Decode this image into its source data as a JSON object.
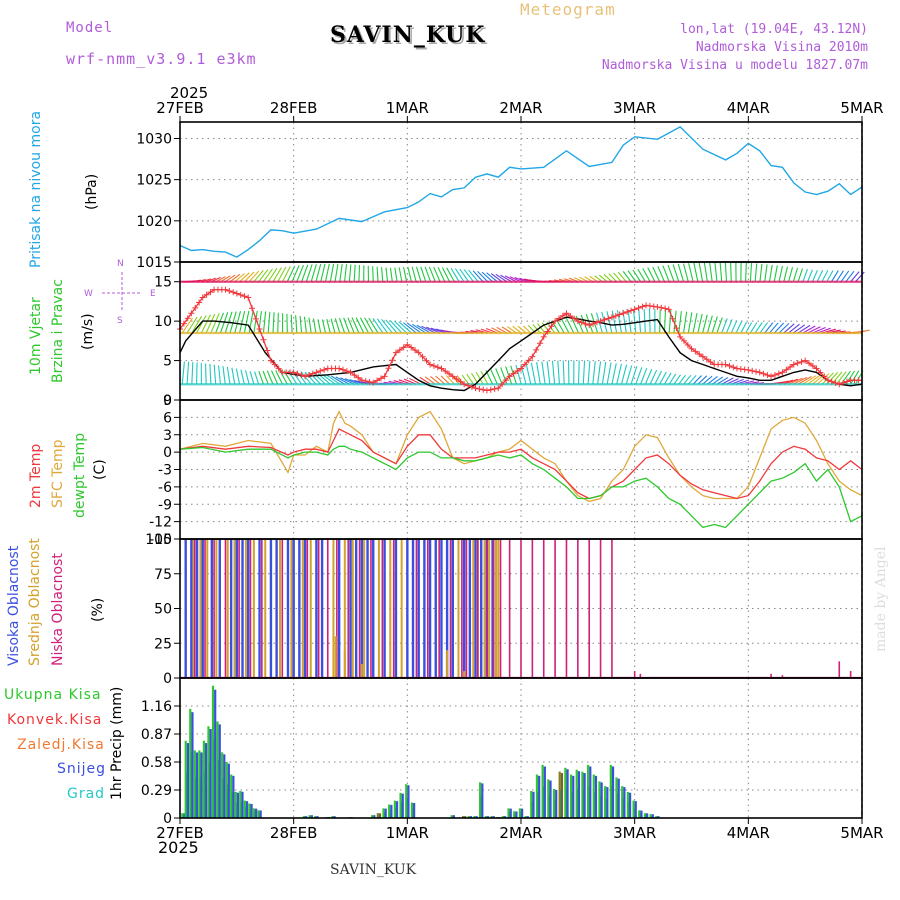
{
  "header": {
    "model_label": "Model",
    "model_name": "wrf-nmm_v3.9.1 e3km",
    "station": "SAVIN_KUK",
    "meteogram": "Meteogram",
    "lonlat": "lon,lat (19.04E, 43.12N)",
    "altitude": "Nadmorska Visina 2010m",
    "altitude_model": "Nadmorska Visina u modelu 1827.07m",
    "year_top": "2025",
    "year_bottom": "2025",
    "footer_station": "SAVIN_KUK",
    "credit": "made by Angel"
  },
  "colors": {
    "pressure": "#21a6e6",
    "wind_speed": "#000000",
    "wind_gust": "#f0383c",
    "temp_2m": "#f0383c",
    "temp_sfc": "#e0a83a",
    "dewpt": "#2ec82e",
    "cloud_high": "#3a4fe0",
    "cloud_mid": "#d2a22a",
    "cloud_low": "#d0207a",
    "precip_total": "#2ec82e",
    "precip_conv": "#f0383c",
    "precip_frozen": "#f07a30",
    "precip_snow": "#3a4fe0",
    "precip_graupel": "#23c8c8"
  },
  "chart_data": [
    {
      "type": "line",
      "name": "pressure",
      "ylabel_1": "Pritisak na nivou mora",
      "ylabel_2": "(hPa)",
      "x_tick_labels": [
        "27FEB",
        "28FEB",
        "1MAR",
        "2MAR",
        "3MAR",
        "4MAR",
        "5MAR"
      ],
      "ylim": [
        1015,
        1032
      ],
      "y_ticks": [
        1015,
        1020,
        1025,
        1030
      ],
      "x_days": [
        0,
        0.1,
        0.2,
        0.3,
        0.4,
        0.5,
        0.6,
        0.7,
        0.8,
        0.9,
        1.0,
        1.2,
        1.4,
        1.6,
        1.8,
        2.0,
        2.1,
        2.2,
        2.3,
        2.4,
        2.5,
        2.6,
        2.7,
        2.8,
        2.9,
        3.0,
        3.2,
        3.4,
        3.6,
        3.8,
        3.9,
        4.0,
        4.2,
        4.4,
        4.6,
        4.8,
        4.9,
        5.0,
        5.1,
        5.2,
        5.3,
        5.4,
        5.5,
        5.6,
        5.7,
        5.8,
        5.9,
        6.0
      ],
      "values": [
        1017,
        1016.4,
        1016.5,
        1016.3,
        1016.2,
        1015.6,
        1016.5,
        1017.6,
        1018.9,
        1018.8,
        1018.5,
        1019,
        1020.3,
        1019.9,
        1021.1,
        1021.6,
        1022.3,
        1023.3,
        1022.9,
        1023.8,
        1024,
        1025.3,
        1025.7,
        1025.3,
        1026.5,
        1026.3,
        1026.5,
        1028.5,
        1026.6,
        1027.1,
        1029.2,
        1030.2,
        1029.9,
        1031.4,
        1028.7,
        1027.4,
        1028.2,
        1029.4,
        1028.5,
        1026.7,
        1026.5,
        1024.6,
        1023.5,
        1023.2,
        1023.6,
        1024.5,
        1023.2,
        1024.1
      ]
    },
    {
      "type": "line",
      "name": "wind",
      "ylabel_1": "10m Vjetar",
      "ylabel_2": "Brzina i Pravac",
      "ylabel_3": "(m/s)",
      "compass": [
        "N",
        "E",
        "S",
        "W"
      ],
      "ylim": [
        0,
        17.5
      ],
      "y_ticks": [
        0,
        5,
        10,
        15
      ],
      "barb_rows_ms": [
        15,
        8.5,
        2
      ],
      "series": [
        {
          "name": "speed",
          "x_days": [
            0,
            0.05,
            0.2,
            0.3,
            0.45,
            0.6,
            0.75,
            0.9,
            1.1,
            1.3,
            1.5,
            1.7,
            1.9,
            2.0,
            2.1,
            2.2,
            2.3,
            2.4,
            2.5,
            2.6,
            2.7,
            2.8,
            2.9,
            3.0,
            3.1,
            3.2,
            3.3,
            3.4,
            3.5,
            3.6,
            3.7,
            3.8,
            3.9,
            4.0,
            4.1,
            4.2,
            4.3,
            4.4,
            4.5,
            4.6,
            4.7,
            4.8,
            4.9,
            5.0,
            5.1,
            5.2,
            5.3,
            5.4,
            5.5,
            5.6,
            5.7,
            5.8,
            5.9,
            6.0
          ],
          "values": [
            6,
            7.5,
            10,
            10,
            9.8,
            9.5,
            6,
            3.5,
            3,
            3.2,
            3.5,
            4.2,
            4.5,
            3.5,
            2.5,
            1.8,
            1.5,
            1.3,
            1.2,
            2,
            3.5,
            5,
            6.5,
            7.5,
            8.5,
            9.5,
            10,
            10.5,
            10.3,
            10,
            9.8,
            9.5,
            9.6,
            9.8,
            10,
            10.2,
            8,
            6,
            5,
            4.5,
            4,
            3.5,
            3,
            2.8,
            2.5,
            2.5,
            3,
            3.5,
            3.8,
            3.5,
            2.5,
            2,
            1.8,
            2
          ]
        },
        {
          "name": "gust",
          "x_days": [
            0,
            0.1,
            0.2,
            0.3,
            0.4,
            0.5,
            0.6,
            0.7,
            0.8,
            0.9,
            1.0,
            1.1,
            1.2,
            1.3,
            1.4,
            1.5,
            1.6,
            1.7,
            1.8,
            1.9,
            2.0,
            2.1,
            2.2,
            2.3,
            2.4,
            2.5,
            2.6,
            2.7,
            2.8,
            2.9,
            3.0,
            3.1,
            3.2,
            3.3,
            3.4,
            3.5,
            3.6,
            3.7,
            3.8,
            3.9,
            4.0,
            4.1,
            4.2,
            4.3,
            4.4,
            4.5,
            4.6,
            4.7,
            4.8,
            4.9,
            5.0,
            5.1,
            5.2,
            5.3,
            5.4,
            5.5,
            5.6,
            5.7,
            5.8,
            5.9,
            6.0
          ],
          "values": [
            9,
            11,
            13,
            14,
            14,
            13.5,
            13,
            9,
            5,
            3.5,
            3.5,
            3,
            3.5,
            4,
            4,
            3.5,
            2.5,
            2.2,
            3,
            6,
            7,
            6,
            4.5,
            4,
            3,
            2,
            1.5,
            1.2,
            1.5,
            3,
            4,
            5.5,
            8,
            10,
            11,
            10,
            9.5,
            10,
            10.5,
            11,
            11.5,
            12,
            11.8,
            11.5,
            8,
            6.5,
            5.5,
            4.5,
            4.5,
            4,
            3.8,
            3.5,
            3,
            3.5,
            4.5,
            5,
            4,
            2.5,
            2,
            2.5,
            2.5
          ]
        }
      ]
    },
    {
      "type": "line",
      "name": "temperature",
      "ylabel_1": "2m Temp",
      "ylabel_2": "SFC Temp",
      "ylabel_3": "dewpt Temp",
      "ylabel_4": "(C)",
      "ylim": [
        -15,
        9
      ],
      "y_ticks": [
        9,
        6,
        3,
        0,
        -3,
        -6,
        -9,
        -12,
        -15
      ],
      "x_days": [
        0,
        0.2,
        0.4,
        0.6,
        0.8,
        0.95,
        1.0,
        1.1,
        1.2,
        1.3,
        1.35,
        1.4,
        1.45,
        1.5,
        1.6,
        1.7,
        1.8,
        1.9,
        2.0,
        2.1,
        2.2,
        2.3,
        2.4,
        2.5,
        2.6,
        2.7,
        2.8,
        2.9,
        3.0,
        3.1,
        3.2,
        3.3,
        3.4,
        3.5,
        3.6,
        3.7,
        3.8,
        3.9,
        4.0,
        4.1,
        4.2,
        4.3,
        4.4,
        4.5,
        4.6,
        4.7,
        4.8,
        4.9,
        5.0,
        5.1,
        5.2,
        5.3,
        5.4,
        5.5,
        5.6,
        5.7,
        5.8,
        5.9,
        6.0
      ],
      "series": [
        {
          "name": "2m Temp",
          "values": [
            0.5,
            1,
            0.5,
            1,
            0.8,
            -0.5,
            0,
            0.5,
            0.5,
            0,
            2,
            4,
            3.5,
            3,
            2,
            0,
            -1,
            -2,
            1,
            3,
            3,
            0.5,
            -1,
            -1,
            -1,
            -0.5,
            0,
            0,
            0.5,
            -1,
            -2,
            -3,
            -5,
            -7,
            -8,
            -7.5,
            -6,
            -5,
            -3,
            -1,
            -0.5,
            -2,
            -4,
            -5.5,
            -6.5,
            -7,
            -7.5,
            -8,
            -7.5,
            -5,
            -2,
            0,
            1,
            0.5,
            -1,
            -1.5,
            -3,
            -1.5,
            -3
          ]
        },
        {
          "name": "SFC Temp",
          "values": [
            0.5,
            1.5,
            1,
            2,
            1.5,
            -3.5,
            -0.5,
            -0.5,
            1,
            0,
            5,
            7,
            5,
            4.5,
            3,
            0,
            -1,
            -2,
            3,
            6,
            7,
            4,
            -1,
            -2,
            -1.5,
            -1,
            0,
            0.5,
            2,
            0.5,
            -1,
            -2,
            -5,
            -7.5,
            -8.5,
            -8,
            -5,
            -3,
            1,
            3,
            2.5,
            -1,
            -4,
            -6,
            -7.5,
            -8,
            -8,
            -8,
            -6,
            -1,
            4,
            5.5,
            6,
            5,
            2,
            -2,
            -5,
            -6.5,
            -7.5
          ]
        },
        {
          "name": "dewpt Temp",
          "values": [
            0.5,
            0.8,
            0,
            0.5,
            0.5,
            -1,
            -0.5,
            0,
            0,
            -0.5,
            0.5,
            1,
            1,
            0.5,
            0,
            -1,
            -2,
            -3,
            -1,
            0,
            0,
            -1,
            -1,
            -1.5,
            -1.5,
            -1,
            -0.5,
            -1,
            -0.5,
            -2,
            -3,
            -4.5,
            -6,
            -8,
            -8,
            -7.5,
            -6,
            -6,
            -5,
            -4.5,
            -6,
            -8,
            -9,
            -11,
            -13,
            -12.5,
            -13,
            -11,
            -9,
            -7,
            -5,
            -4.5,
            -3.5,
            -2,
            -5,
            -3,
            -6,
            -12,
            -11
          ]
        }
      ]
    },
    {
      "type": "bar",
      "name": "cloud_cover",
      "ylabel_1": "Visoka Oblacnost",
      "ylabel_2": "Srednja Oblacnost",
      "ylabel_3": "Niska Oblacnost",
      "ylabel_4": "(%)",
      "ylim": [
        0,
        100
      ],
      "y_ticks": [
        0,
        25,
        50,
        75,
        100
      ],
      "high_100_days": [
        0.05,
        0.1,
        0.15,
        0.2,
        0.28,
        0.35,
        0.45,
        0.5,
        0.55,
        0.6,
        0.7,
        0.8,
        0.85,
        0.95,
        1.0,
        1.05,
        1.1,
        1.2,
        1.25,
        1.4,
        1.5,
        1.55,
        1.6,
        1.65,
        1.7,
        1.8,
        1.9,
        2.0,
        2.05,
        2.1,
        2.15,
        2.2,
        2.25,
        2.3,
        2.35,
        2.4,
        2.5,
        2.55,
        2.6,
        2.65,
        2.7,
        2.75
      ],
      "mid_100_days": [
        0.12,
        0.18,
        0.24,
        0.32,
        0.42,
        0.48,
        0.58,
        0.65,
        0.75,
        0.88,
        0.98,
        1.08,
        1.15,
        1.35,
        1.45,
        1.52,
        1.62,
        1.75,
        1.85,
        1.95,
        2.4,
        2.45,
        2.58,
        2.62,
        2.68,
        2.72,
        2.78,
        2.8
      ],
      "low_100_days": [
        0.13,
        0.22,
        0.3,
        0.4,
        0.52,
        0.62,
        0.72,
        0.9,
        1.12,
        1.22,
        1.3,
        1.38,
        1.48,
        1.58,
        1.68,
        1.78,
        1.88,
        2.08,
        2.18,
        2.28,
        2.38,
        2.48,
        2.52,
        2.62,
        2.7,
        2.76,
        2.82,
        2.9,
        3.0,
        3.1,
        3.2,
        3.3,
        3.4,
        3.5,
        3.6,
        3.7,
        3.8
      ],
      "mid_partial": [
        [
          1.37,
          30
        ],
        [
          1.45,
          20
        ],
        [
          1.6,
          10
        ],
        [
          2.35,
          20
        ],
        [
          2.5,
          5
        ]
      ],
      "low_small": [
        [
          4.0,
          5
        ],
        [
          4.05,
          3
        ],
        [
          5.2,
          3
        ],
        [
          5.3,
          2
        ],
        [
          5.8,
          12
        ],
        [
          5.9,
          5
        ]
      ]
    },
    {
      "type": "bar",
      "name": "precipitation",
      "legend": [
        "Ukupna Kisa",
        "Konvek.Kisa",
        "Zaledj.Kisa",
        "Snijeg",
        "Grad"
      ],
      "ylabel": "1hr Precip (mm)",
      "ylim": [
        0,
        1.45
      ],
      "y_ticks": [
        0,
        0.29,
        0.58,
        0.87,
        1.16
      ],
      "x_days": [
        0.03,
        0.06,
        0.1,
        0.14,
        0.18,
        0.22,
        0.26,
        0.3,
        0.34,
        0.38,
        0.42,
        0.46,
        0.5,
        0.54,
        0.58,
        0.62,
        0.66,
        0.7,
        1.1,
        1.15,
        1.2,
        1.3,
        1.35,
        1.5,
        1.7,
        1.75,
        1.8,
        1.85,
        1.9,
        1.95,
        2.0,
        2.05,
        2.4,
        2.5,
        2.55,
        2.6,
        2.65,
        2.7,
        2.75,
        2.8,
        2.85,
        2.9,
        2.95,
        3.0,
        3.05,
        3.1,
        3.15,
        3.2,
        3.25,
        3.3,
        3.35,
        3.4,
        3.45,
        3.5,
        3.55,
        3.6,
        3.65,
        3.7,
        3.75,
        3.8,
        3.85,
        3.9,
        3.95,
        4.0,
        4.05,
        4.1,
        4.15,
        4.2
      ],
      "values": [
        0.05,
        0.8,
        1.13,
        0.7,
        0.7,
        0.8,
        0.95,
        1.37,
        1.0,
        0.68,
        0.58,
        0.45,
        0.27,
        0.28,
        0.18,
        0.15,
        0.1,
        0.08,
        0.02,
        0.03,
        0.02,
        0.01,
        0.02,
        0.01,
        0.03,
        0.05,
        0.1,
        0.14,
        0.18,
        0.26,
        0.35,
        0.16,
        0.03,
        0.02,
        0.02,
        0.02,
        0.37,
        0.02,
        0.02,
        0.01,
        0.02,
        0.1,
        0.07,
        0.1,
        0.02,
        0.28,
        0.45,
        0.55,
        0.4,
        0.3,
        0.48,
        0.52,
        0.45,
        0.5,
        0.48,
        0.55,
        0.45,
        0.38,
        0.33,
        0.55,
        0.42,
        0.33,
        0.27,
        0.18,
        0.08,
        0.05,
        0.04,
        0.02
      ],
      "mixed_days": [
        1.75,
        2.5,
        3.35
      ]
    }
  ]
}
